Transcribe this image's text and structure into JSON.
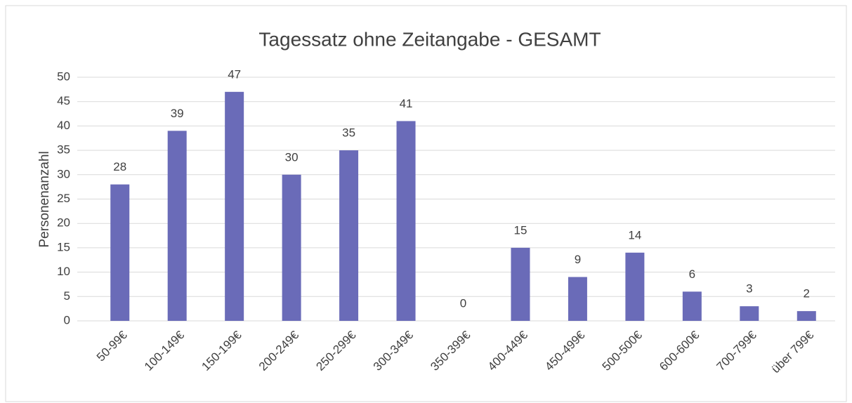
{
  "chart_data": {
    "type": "bar",
    "title": "Tagessatz ohne Zeitangabe - GESAMT",
    "y_label": "Personenanzahl",
    "categories": [
      "50-99€",
      "100-149€",
      "150-199€",
      "200-249€",
      "250-299€",
      "300-349€",
      "350-399€",
      "400-449€",
      "450-499€",
      "500-500€",
      "600-600€",
      "700-799€",
      "über 799€"
    ],
    "values": [
      28,
      39,
      47,
      30,
      35,
      41,
      0,
      15,
      9,
      14,
      6,
      3,
      2
    ],
    "color": "#6a6bb8",
    "ylim": [
      0,
      50
    ],
    "yticks": [
      0,
      5,
      10,
      15,
      20,
      25,
      30,
      35,
      40,
      45,
      50
    ],
    "grid": true
  }
}
